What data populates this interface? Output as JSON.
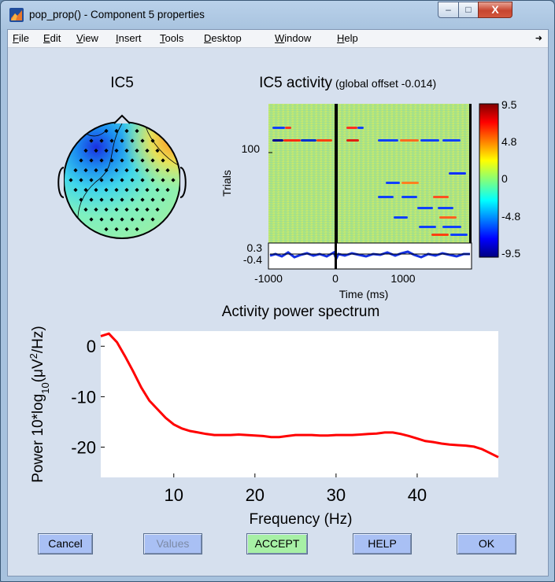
{
  "window": {
    "title": "pop_prop() - Component 5 properties",
    "buttons": {
      "minimize": "–",
      "maximize": "□",
      "close": "X"
    }
  },
  "menubar": {
    "items": [
      {
        "label": "File",
        "underline": "F",
        "rest": "ile"
      },
      {
        "label": "Edit",
        "underline": "E",
        "rest": "dit"
      },
      {
        "label": "View",
        "underline": "V",
        "rest": "iew"
      },
      {
        "label": "Insert",
        "underline": "I",
        "rest": "nsert"
      },
      {
        "label": "Tools",
        "underline": "T",
        "rest": "ools"
      },
      {
        "label": "Desktop",
        "underline": "D",
        "rest": "esktop"
      },
      {
        "label": "Window",
        "underline": "W",
        "rest": "indow"
      },
      {
        "label": "Help",
        "underline": "H",
        "rest": "elp"
      }
    ],
    "overflow_icon": "arrow-icon"
  },
  "topo": {
    "title": "IC5"
  },
  "erp_image": {
    "title": "IC5 activity",
    "subtitle": "(global offset -0.014)",
    "ylabel": "Trials",
    "ytick": "100",
    "colorbar_ticks": [
      "9.5",
      "4.8",
      "0",
      "-4.8",
      "-9.5"
    ],
    "erp_ticks": [
      "0.3",
      "-0.4"
    ],
    "xticks": [
      "-1000",
      "0",
      "1000"
    ],
    "xlabel": "Time (ms)"
  },
  "chart_data": {
    "type": "line",
    "title": "Activity power spectrum",
    "xlabel": "Frequency (Hz)",
    "ylabel": "Power 10*log10(μV²/Hz)",
    "ylabel_parts": {
      "main": "Power 10*log",
      "sub": "10",
      "mid": "(μV",
      "sup": "2",
      "end": "/Hz)"
    },
    "xlim": [
      1,
      50
    ],
    "ylim": [
      -26,
      3
    ],
    "xticks": [
      10,
      20,
      30,
      40
    ],
    "yticks": [
      0,
      -10,
      -20
    ],
    "line_color": "#ff0000",
    "series": [
      {
        "x": [
          1,
          2,
          3,
          4,
          5,
          6,
          7,
          8,
          9,
          10,
          11,
          12,
          13,
          14,
          15,
          16,
          17,
          18,
          19,
          20,
          21,
          22,
          23,
          24,
          25,
          26,
          27,
          28,
          29,
          30,
          31,
          32,
          33,
          34,
          35,
          36,
          37,
          38,
          39,
          40,
          41,
          42,
          43,
          44,
          45,
          46,
          47,
          48,
          49,
          50
        ],
        "values": [
          2.0,
          2.5,
          0.8,
          -2.0,
          -5.0,
          -8.2,
          -10.8,
          -12.5,
          -14.2,
          -15.5,
          -16.3,
          -16.8,
          -17.1,
          -17.4,
          -17.6,
          -17.6,
          -17.6,
          -17.5,
          -17.6,
          -17.7,
          -17.8,
          -18.0,
          -18.0,
          -17.8,
          -17.6,
          -17.6,
          -17.6,
          -17.7,
          -17.7,
          -17.6,
          -17.6,
          -17.6,
          -17.5,
          -17.4,
          -17.3,
          -17.1,
          -17.1,
          -17.4,
          -17.8,
          -18.3,
          -18.8,
          -19.0,
          -19.3,
          -19.5,
          -19.6,
          -19.7,
          -19.9,
          -20.4,
          -21.2,
          -22.0
        ]
      }
    ]
  },
  "buttons": {
    "cancel": "Cancel",
    "values": "Values",
    "accept": "ACCEPT",
    "help": "HELP",
    "ok": "OK"
  }
}
